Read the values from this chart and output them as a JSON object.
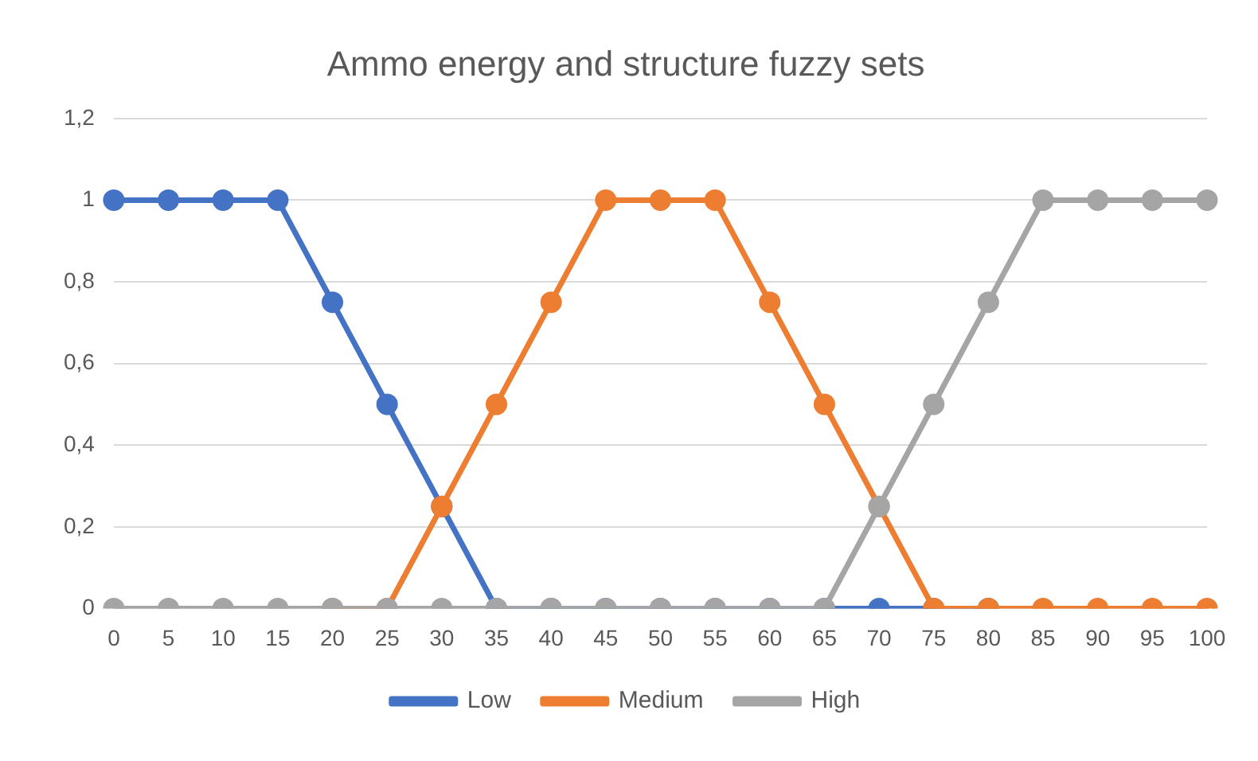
{
  "chart_data": {
    "type": "line",
    "title": "Ammo energy and structure fuzzy sets",
    "categories": [
      "0",
      "5",
      "10",
      "15",
      "20",
      "25",
      "30",
      "35",
      "40",
      "45",
      "50",
      "55",
      "60",
      "65",
      "70",
      "75",
      "80",
      "85",
      "90",
      "95",
      "100"
    ],
    "series": [
      {
        "name": "Low",
        "color": "#4472c4",
        "values": [
          1,
          1,
          1,
          1,
          0.75,
          0.5,
          0.25,
          0,
          0,
          0,
          0,
          0,
          0,
          0,
          0,
          0,
          0,
          null,
          null,
          null,
          null
        ]
      },
      {
        "name": "Medium",
        "color": "#ed7d31",
        "values": [
          null,
          null,
          null,
          null,
          0,
          0,
          0.25,
          0.5,
          0.75,
          1,
          1,
          1,
          0.75,
          0.5,
          0.25,
          0,
          0,
          0,
          0,
          0,
          0
        ]
      },
      {
        "name": "High",
        "color": "#a5a5a5",
        "values": [
          0,
          0,
          0,
          0,
          0,
          0,
          0,
          0,
          0,
          0,
          0,
          0,
          0,
          0,
          0.25,
          0.5,
          0.75,
          1,
          1,
          1,
          1
        ]
      }
    ],
    "ylim": [
      0,
      1.2
    ],
    "yticks": [
      0,
      {
        "value": 0.2,
        "label": "0,2"
      },
      {
        "value": 0.4,
        "label": "0,4"
      },
      {
        "value": 0.6,
        "label": "0,6"
      },
      {
        "value": 0.8,
        "label": "0,8"
      },
      1,
      {
        "value": 1.2,
        "label": "1,2"
      }
    ],
    "grid": "y",
    "legend": "bottom",
    "marker": "circle",
    "line_style": "solid"
  }
}
